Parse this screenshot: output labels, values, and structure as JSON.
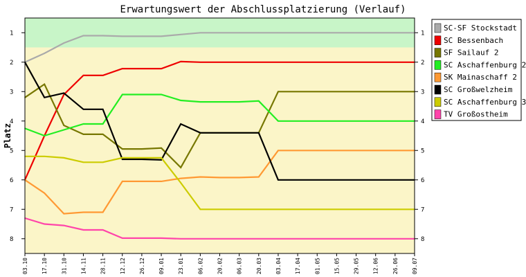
{
  "chart_data": {
    "type": "line",
    "title": "Erwartungswert der Abschlussplatzierung (Verlauf)",
    "ylabel": "Platz",
    "xlabel": "",
    "ylim": [
      0.5,
      8.5
    ],
    "y_inverted": true,
    "y_ticks": [
      1,
      2,
      3,
      4,
      5,
      6,
      7,
      8
    ],
    "grid": false,
    "legend_position": "right",
    "bands": [
      {
        "from": 0.5,
        "to": 1.5,
        "color": "#c8f5c8"
      },
      {
        "from": 1.5,
        "to": 8.5,
        "color": "#fbf5c8"
      }
    ],
    "x": [
      "03.10",
      "17.10",
      "31.10",
      "14.11",
      "28.11",
      "12.12",
      "26.12",
      "09.01",
      "23.01",
      "06.02",
      "20.02",
      "06.03",
      "20.03",
      "03.04",
      "17.04",
      "01.05",
      "15.05",
      "29.05",
      "12.06",
      "26.06",
      "09.07"
    ],
    "series": [
      {
        "name": "SC-SF Stockstadt",
        "color": "#aaaaaa",
        "values": [
          2.0,
          1.7,
          1.35,
          1.1,
          1.1,
          1.12,
          1.12,
          1.12,
          1.06,
          1.0,
          1.0,
          1.0,
          1.0,
          1.0,
          1.0,
          1.0,
          1.0,
          1.0,
          1.0,
          1.0,
          1.0
        ]
      },
      {
        "name": "SC Bessenbach",
        "color": "#ee0000",
        "values": [
          6.0,
          4.5,
          3.1,
          2.45,
          2.45,
          2.22,
          2.22,
          2.22,
          1.98,
          2.0,
          2.0,
          2.0,
          2.0,
          2.0,
          2.0,
          2.0,
          2.0,
          2.0,
          2.0,
          2.0,
          2.0
        ]
      },
      {
        "name": "SF Sailauf 2",
        "color": "#777700",
        "values": [
          3.2,
          2.75,
          4.15,
          4.45,
          4.45,
          4.95,
          4.95,
          4.92,
          5.58,
          4.4,
          4.4,
          4.4,
          4.4,
          3.0,
          3.0,
          3.0,
          3.0,
          3.0,
          3.0,
          3.0,
          3.0
        ]
      },
      {
        "name": "SC Aschaffenburg 2",
        "color": "#22ee22",
        "values": [
          4.25,
          4.5,
          4.3,
          4.1,
          4.1,
          3.1,
          3.1,
          3.1,
          3.3,
          3.35,
          3.35,
          3.35,
          3.32,
          4.0,
          4.0,
          4.0,
          4.0,
          4.0,
          4.0,
          4.0,
          4.0
        ]
      },
      {
        "name": "SK Mainaschaff 2",
        "color": "#ff9933",
        "values": [
          6.0,
          6.45,
          7.15,
          7.1,
          7.1,
          6.05,
          6.05,
          6.05,
          5.95,
          5.9,
          5.92,
          5.92,
          5.9,
          5.0,
          5.0,
          5.0,
          5.0,
          5.0,
          5.0,
          5.0,
          5.0
        ]
      },
      {
        "name": "SC Großwelzheim",
        "color": "#000000",
        "values": [
          2.0,
          3.2,
          3.05,
          3.6,
          3.6,
          5.3,
          5.3,
          5.32,
          4.1,
          4.4,
          4.4,
          4.4,
          4.4,
          6.0,
          6.0,
          6.0,
          6.0,
          6.0,
          6.0,
          6.0,
          6.0
        ]
      },
      {
        "name": "SC Aschaffenburg 3",
        "color": "#cccc00",
        "values": [
          5.2,
          5.2,
          5.25,
          5.4,
          5.4,
          5.25,
          5.25,
          5.25,
          6.1,
          7.0,
          7.0,
          7.0,
          7.0,
          7.0,
          7.0,
          7.0,
          7.0,
          7.0,
          7.0,
          7.0,
          7.0
        ]
      },
      {
        "name": "TV Großostheim",
        "color": "#ff44aa",
        "values": [
          7.3,
          7.5,
          7.55,
          7.7,
          7.7,
          7.98,
          7.98,
          7.98,
          8.0,
          8.0,
          8.0,
          8.0,
          8.0,
          8.0,
          8.0,
          8.0,
          8.0,
          8.0,
          8.0,
          8.0,
          8.0
        ]
      }
    ]
  }
}
